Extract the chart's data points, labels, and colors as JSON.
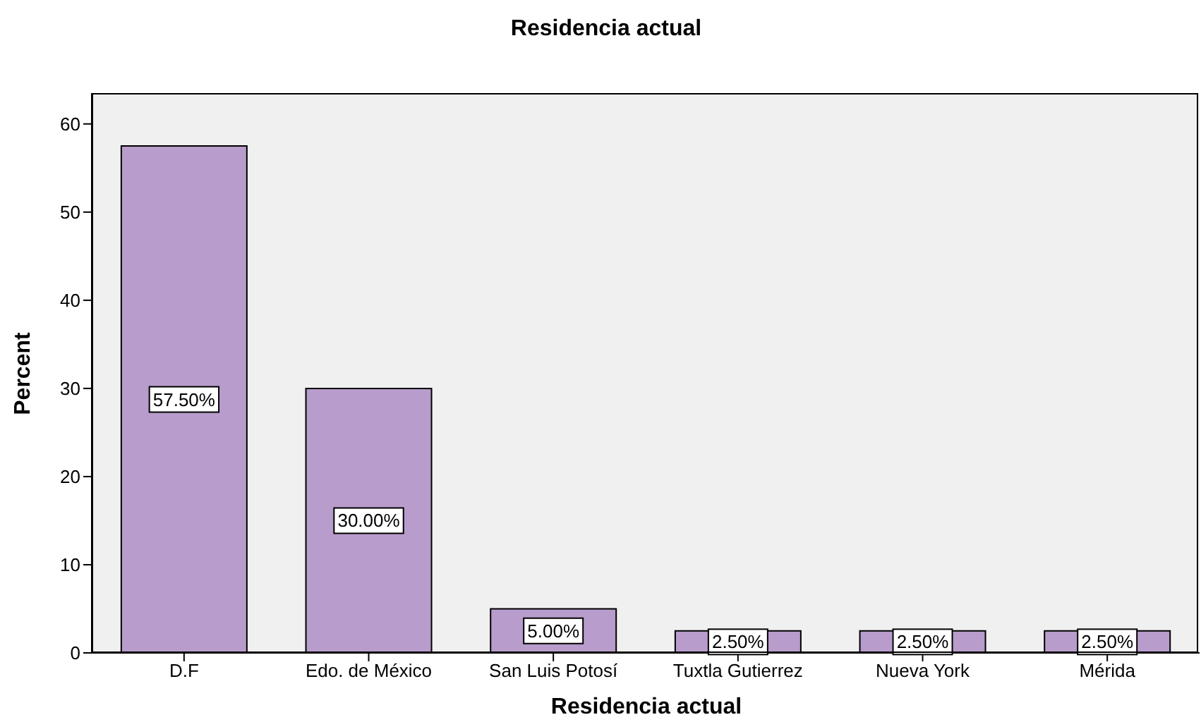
{
  "chart_data": {
    "type": "bar",
    "title": "Residencia actual",
    "xlabel": "Residencia actual",
    "ylabel": "Percent",
    "categories": [
      "D.F",
      "Edo. de México",
      "San Luis Potosí",
      "Tuxtla Gutierrez",
      "Nueva York",
      "Mérida"
    ],
    "values": [
      57.5,
      30,
      5,
      2.5,
      2.5,
      2.5
    ],
    "value_labels": [
      "57.50%",
      "30.00%",
      "5.00%",
      "2.50%",
      "2.50%",
      "2.50%"
    ],
    "color": "#b89ccb",
    "ylim": [
      0,
      63.5
    ],
    "yticks": [
      0,
      10,
      20,
      30,
      40,
      50,
      60
    ],
    "grid": false
  }
}
